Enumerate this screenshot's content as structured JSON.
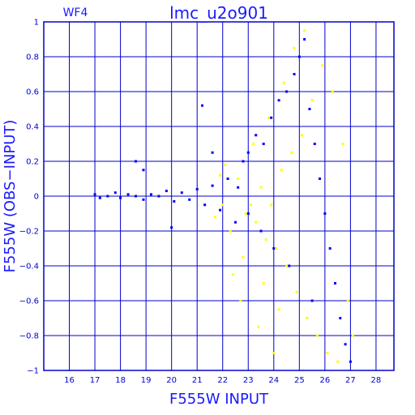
{
  "chart_data": {
    "type": "scatter",
    "title": "lmc_u2o901",
    "panel_label": "WF4",
    "xlabel": "F555W INPUT",
    "ylabel": "F555W (OBS−INPUT)",
    "xlim": [
      15,
      28.7
    ],
    "ylim": [
      -1,
      1
    ],
    "x_ticks": [
      16,
      17,
      18,
      19,
      20,
      21,
      22,
      23,
      24,
      25,
      26,
      27,
      28
    ],
    "y_ticks": [
      -1,
      -0.8,
      -0.6,
      -0.4,
      -0.2,
      0,
      0.2,
      0.4,
      0.6,
      0.8,
      1
    ],
    "y_tick_labels": [
      "−1",
      "−0.8",
      "−0.6",
      "−0.4",
      "−0.2",
      "0",
      "0.2",
      "0.4",
      "0.6",
      "0.8",
      "1"
    ],
    "grid": true,
    "colors": {
      "axis": "#0000cc",
      "frame": "#0000cc",
      "text": "#1a1aff",
      "series_blue": "#0000ff",
      "series_yellow": "#ffff00"
    },
    "series": [
      {
        "color": "#0000ff",
        "values": [
          [
            17.0,
            0.01
          ],
          [
            17.2,
            -0.01
          ],
          [
            17.5,
            0.0
          ],
          [
            17.8,
            0.02
          ],
          [
            18.0,
            -0.01
          ],
          [
            18.3,
            0.01
          ],
          [
            18.6,
            0.0
          ],
          [
            18.9,
            -0.02
          ],
          [
            19.2,
            0.01
          ],
          [
            19.5,
            0.0
          ],
          [
            19.8,
            0.03
          ],
          [
            20.1,
            -0.03
          ],
          [
            20.4,
            0.02
          ],
          [
            20.7,
            -0.02
          ],
          [
            21.0,
            0.04
          ],
          [
            21.3,
            -0.05
          ],
          [
            21.6,
            0.06
          ],
          [
            21.9,
            -0.08
          ],
          [
            22.2,
            0.1
          ],
          [
            22.5,
            -0.15
          ],
          [
            22.8,
            0.2
          ],
          [
            23.0,
            0.25
          ],
          [
            23.3,
            0.35
          ],
          [
            23.6,
            0.3
          ],
          [
            23.9,
            0.45
          ],
          [
            24.2,
            0.55
          ],
          [
            24.5,
            0.6
          ],
          [
            24.8,
            0.7
          ],
          [
            25.0,
            0.8
          ],
          [
            25.2,
            0.9
          ],
          [
            25.4,
            0.5
          ],
          [
            25.6,
            0.3
          ],
          [
            25.8,
            0.1
          ],
          [
            26.0,
            -0.1
          ],
          [
            26.2,
            -0.3
          ],
          [
            26.4,
            -0.5
          ],
          [
            26.6,
            -0.7
          ],
          [
            26.8,
            -0.85
          ],
          [
            27.0,
            -0.95
          ],
          [
            25.5,
            -0.6
          ],
          [
            24.6,
            -0.4
          ],
          [
            24.0,
            -0.3
          ],
          [
            23.5,
            -0.2
          ],
          [
            23.0,
            -0.1
          ],
          [
            22.6,
            0.05
          ],
          [
            18.6,
            0.2
          ],
          [
            18.9,
            0.15
          ],
          [
            21.2,
            0.52
          ],
          [
            21.6,
            0.25
          ],
          [
            20.0,
            -0.18
          ]
        ]
      },
      {
        "color": "#ffff00",
        "values": [
          [
            22.0,
            -0.05
          ],
          [
            22.3,
            -0.2
          ],
          [
            22.6,
            0.1
          ],
          [
            22.9,
            -0.1
          ],
          [
            23.1,
            -0.05
          ],
          [
            23.3,
            -0.15
          ],
          [
            23.5,
            0.05
          ],
          [
            23.7,
            -0.25
          ],
          [
            23.9,
            -0.05
          ],
          [
            24.1,
            -0.3
          ],
          [
            24.3,
            0.15
          ],
          [
            24.5,
            -0.4
          ],
          [
            24.7,
            0.25
          ],
          [
            24.9,
            -0.55
          ],
          [
            25.1,
            0.35
          ],
          [
            25.3,
            -0.7
          ],
          [
            25.5,
            0.55
          ],
          [
            25.7,
            -0.8
          ],
          [
            25.9,
            0.75
          ],
          [
            26.1,
            -0.9
          ],
          [
            26.3,
            0.6
          ],
          [
            26.5,
            -0.95
          ],
          [
            26.7,
            0.3
          ],
          [
            26.9,
            -0.6
          ],
          [
            27.1,
            -0.8
          ],
          [
            23.2,
            0.3
          ],
          [
            23.8,
            0.45
          ],
          [
            24.4,
            0.65
          ],
          [
            24.8,
            0.85
          ],
          [
            25.2,
            0.95
          ],
          [
            22.4,
            -0.45
          ],
          [
            22.7,
            -0.6
          ],
          [
            23.4,
            -0.75
          ],
          [
            24.0,
            -0.9
          ],
          [
            23.6,
            -0.5
          ],
          [
            21.9,
            0.12
          ],
          [
            21.7,
            -0.12
          ],
          [
            22.1,
            0.18
          ],
          [
            22.8,
            -0.35
          ],
          [
            24.2,
            -0.65
          ]
        ]
      }
    ]
  }
}
